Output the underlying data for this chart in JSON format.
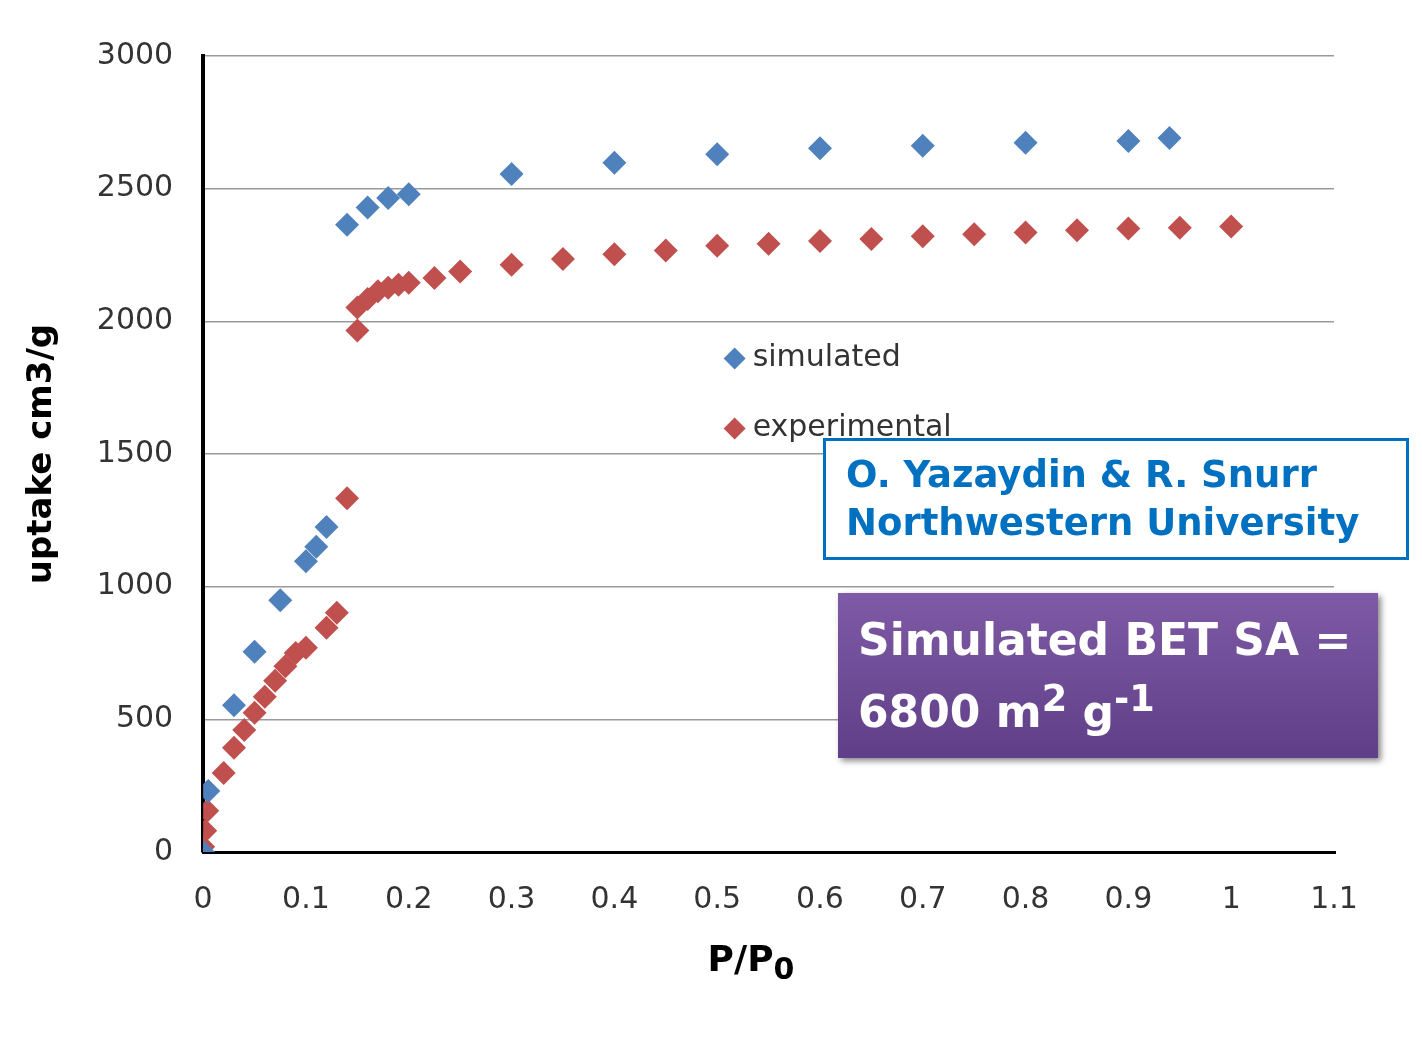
{
  "chart_data": {
    "type": "scatter",
    "xlabel": "P/P$_{0}$",
    "ylabel": "uptake cm3/g",
    "xlim": [
      0,
      1.1
    ],
    "xticks": [
      0,
      0.1,
      0.2,
      0.3,
      0.4,
      0.5,
      0.6,
      0.7,
      0.8,
      0.9,
      1,
      1.1
    ],
    "ylim": [
      0,
      3000
    ],
    "yticks": [
      0,
      500,
      1000,
      1500,
      2000,
      2500,
      3000
    ],
    "grid": "y",
    "legend": "center",
    "marker": "diamond",
    "series": [
      {
        "name": "simulated",
        "color": "#4f81bd",
        "x": [
          0,
          0.005,
          0.03,
          0.05,
          0.075,
          0.1,
          0.11,
          0.12,
          0.14,
          0.16,
          0.18,
          0.2,
          0.3,
          0.4,
          0.5,
          0.6,
          0.7,
          0.8,
          0.9,
          0.94
        ],
        "values": [
          0,
          230,
          553,
          755,
          949,
          1096,
          1150,
          1225,
          2364,
          2429,
          2465,
          2479,
          2555,
          2598,
          2630,
          2652,
          2662,
          2673,
          2680,
          2691
        ]
      },
      {
        "name": "experimental",
        "color": "#c0504d",
        "x": [
          0,
          0.002,
          0.004,
          0.007,
          0.01,
          0.02,
          0.03,
          0.04,
          0.05,
          0.06,
          0.07,
          0.08,
          0.09,
          0.1,
          0.12,
          0.13,
          0.14,
          0.15,
          0.15,
          0.16,
          0.17,
          0.18,
          0.19,
          0.2,
          0.225,
          0.25,
          0.3,
          0.35,
          0.4,
          0.45,
          0.5,
          0.55,
          0.6,
          0.65,
          0.7,
          0.75,
          0.8,
          0.85,
          0.9,
          0.95,
          1.0
        ],
        "values": [
          20,
          80,
          155,
          null,
          null,
          298,
          393,
          460,
          525,
          585,
          645,
          700,
          750,
          770,
          845,
          902,
          1333,
          1965,
          2052,
          2084,
          2113,
          2127,
          2138,
          2145,
          2163,
          2188,
          2213,
          2235,
          2253,
          2267,
          2285,
          2292,
          2303,
          2310,
          2321,
          2328,
          2335,
          2343,
          2350,
          2353,
          2357
        ]
      }
    ],
    "annotations": [
      "O. Yazaydin & R. Snurr\nNorthwestern University",
      "Simulated BET SA = 6800 m$^{2}$ g$^{-1}$"
    ]
  }
}
